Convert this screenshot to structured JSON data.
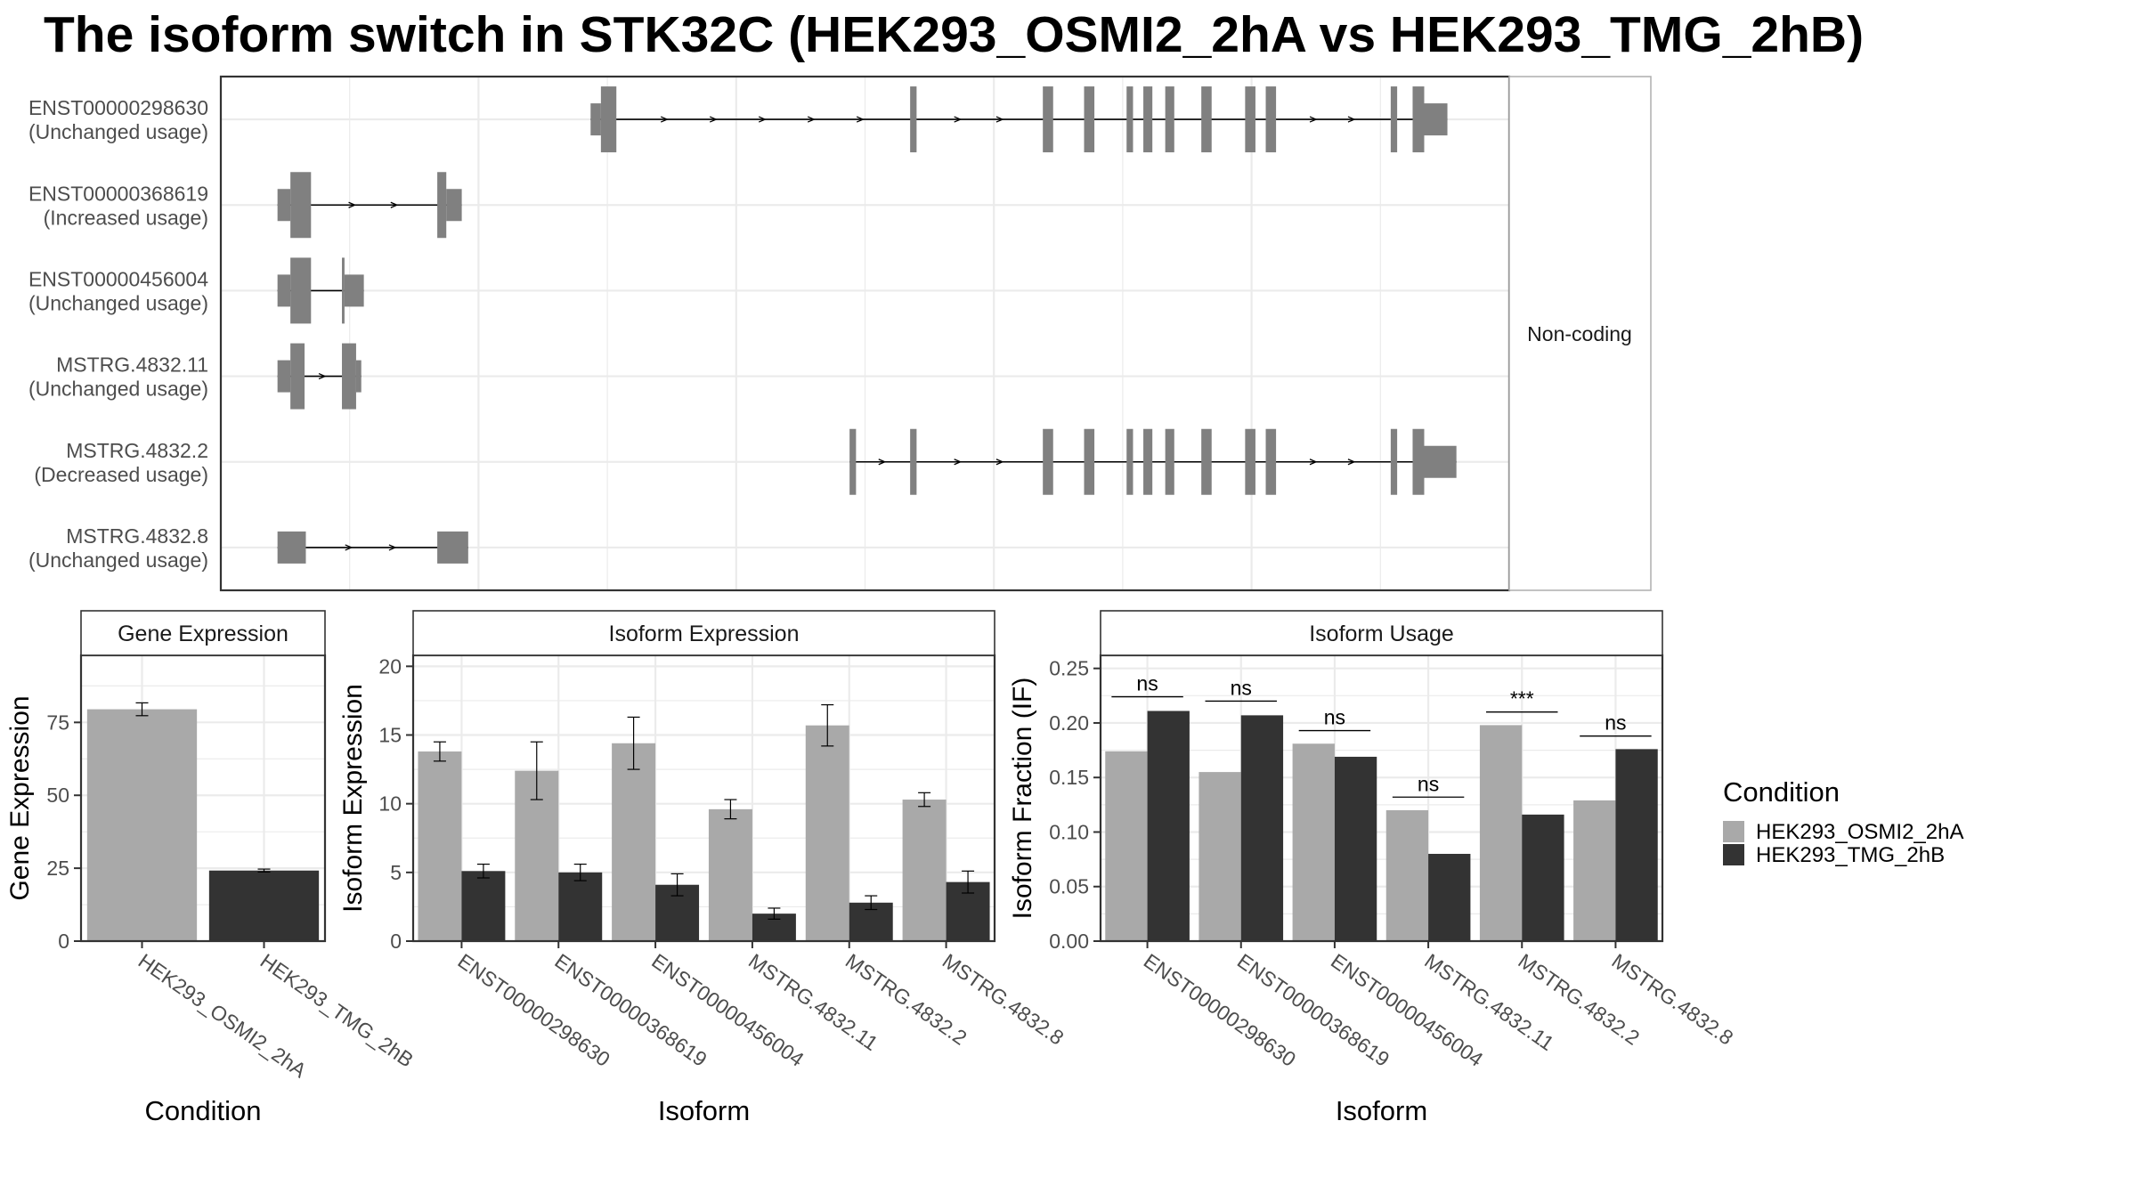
{
  "title": "The isoform switch in STK32C (HEK293_OSMI2_2hA vs HEK293_TMG_2hB)",
  "colors": {
    "condition_1": "#a9a9a9",
    "condition_2": "#333333",
    "structure": "#808080",
    "grid": "#ebebeb",
    "panel_border": "#333333",
    "strip_border": "#b3b3b3"
  },
  "chart_data": [
    {
      "type": "gene-structure",
      "facet_label": "Non-coding",
      "x_range": [
        0,
        100
      ],
      "transcripts": [
        {
          "id": "ENST00000298630",
          "status": "(Unchanged usage)",
          "exons": [
            {
              "start": 28.7,
              "end": 29.5,
              "type": "utr"
            },
            {
              "start": 29.5,
              "end": 30.7,
              "type": "cds"
            },
            {
              "start": 53.5,
              "end": 54.0,
              "type": "cds"
            },
            {
              "start": 63.8,
              "end": 64.6,
              "type": "cds"
            },
            {
              "start": 67.0,
              "end": 67.8,
              "type": "cds"
            },
            {
              "start": 70.3,
              "end": 70.8,
              "type": "cds"
            },
            {
              "start": 71.6,
              "end": 72.3,
              "type": "cds"
            },
            {
              "start": 73.3,
              "end": 74.0,
              "type": "cds"
            },
            {
              "start": 76.1,
              "end": 76.9,
              "type": "cds"
            },
            {
              "start": 79.5,
              "end": 80.3,
              "type": "cds"
            },
            {
              "start": 81.1,
              "end": 81.9,
              "type": "cds"
            },
            {
              "start": 90.8,
              "end": 91.3,
              "type": "cds"
            },
            {
              "start": 92.5,
              "end": 93.4,
              "type": "cds"
            },
            {
              "start": 93.4,
              "end": 95.2,
              "type": "utr"
            }
          ]
        },
        {
          "id": "ENST00000368619",
          "status": "(Increased usage)",
          "exons": [
            {
              "start": 4.4,
              "end": 5.4,
              "type": "utr"
            },
            {
              "start": 5.4,
              "end": 7.0,
              "type": "cds"
            },
            {
              "start": 16.8,
              "end": 17.5,
              "type": "cds"
            },
            {
              "start": 17.5,
              "end": 18.7,
              "type": "utr"
            }
          ]
        },
        {
          "id": "ENST00000456004",
          "status": "(Unchanged usage)",
          "exons": [
            {
              "start": 4.4,
              "end": 5.4,
              "type": "utr"
            },
            {
              "start": 5.4,
              "end": 7.0,
              "type": "cds"
            },
            {
              "start": 9.4,
              "end": 9.6,
              "type": "cds"
            },
            {
              "start": 9.6,
              "end": 11.1,
              "type": "utr"
            }
          ]
        },
        {
          "id": "MSTRG.4832.11",
          "status": "(Unchanged usage)",
          "exons": [
            {
              "start": 4.4,
              "end": 5.4,
              "type": "utr"
            },
            {
              "start": 5.4,
              "end": 6.5,
              "type": "cds"
            },
            {
              "start": 9.4,
              "end": 10.5,
              "type": "cds"
            },
            {
              "start": 10.5,
              "end": 10.9,
              "type": "utr"
            }
          ]
        },
        {
          "id": "MSTRG.4832.2",
          "status": "(Decreased usage)",
          "exons": [
            {
              "start": 48.8,
              "end": 49.3,
              "type": "cds"
            },
            {
              "start": 53.5,
              "end": 54.0,
              "type": "cds"
            },
            {
              "start": 63.8,
              "end": 64.6,
              "type": "cds"
            },
            {
              "start": 67.0,
              "end": 67.8,
              "type": "cds"
            },
            {
              "start": 70.3,
              "end": 70.8,
              "type": "cds"
            },
            {
              "start": 71.6,
              "end": 72.3,
              "type": "cds"
            },
            {
              "start": 73.3,
              "end": 74.0,
              "type": "cds"
            },
            {
              "start": 76.1,
              "end": 76.9,
              "type": "cds"
            },
            {
              "start": 79.5,
              "end": 80.3,
              "type": "cds"
            },
            {
              "start": 81.1,
              "end": 81.9,
              "type": "cds"
            },
            {
              "start": 90.8,
              "end": 91.3,
              "type": "cds"
            },
            {
              "start": 92.5,
              "end": 93.4,
              "type": "cds"
            },
            {
              "start": 93.4,
              "end": 95.9,
              "type": "utr"
            }
          ]
        },
        {
          "id": "MSTRG.4832.8",
          "status": "(Unchanged usage)",
          "exons": [
            {
              "start": 4.4,
              "end": 6.6,
              "type": "utr"
            },
            {
              "start": 16.8,
              "end": 19.2,
              "type": "utr"
            }
          ]
        }
      ]
    },
    {
      "type": "bar",
      "title": "Gene Expression",
      "xlabel": "Condition",
      "ylabel": "Gene Expression",
      "ylim": [
        0,
        98
      ],
      "yticks": [
        0,
        25,
        50,
        75
      ],
      "categories": [
        "HEK293_OSMI2_2hA",
        "HEK293_TMG_2hB"
      ],
      "values": [
        79.5,
        24.2
      ],
      "errors": [
        [
          77.3,
          81.7
        ],
        [
          23.7,
          24.7
        ]
      ]
    },
    {
      "type": "bar",
      "title": "Isoform Expression",
      "xlabel": "Isoform",
      "ylabel": "Isoform Expression",
      "ylim": [
        0,
        20.8
      ],
      "yticks": [
        0,
        5,
        10,
        15,
        20
      ],
      "categories": [
        "ENST00000298630",
        "ENST00000368619",
        "ENST00000456004",
        "MSTRG.4832.11",
        "MSTRG.4832.2",
        "MSTRG.4832.8"
      ],
      "series": [
        {
          "name": "HEK293_OSMI2_2hA",
          "values": [
            13.8,
            12.4,
            14.4,
            9.6,
            15.7,
            10.3
          ],
          "errors": [
            [
              13.1,
              14.5
            ],
            [
              10.3,
              14.5
            ],
            [
              12.5,
              16.3
            ],
            [
              8.9,
              10.3
            ],
            [
              14.2,
              17.2
            ],
            [
              9.8,
              10.8
            ]
          ]
        },
        {
          "name": "HEK293_TMG_2hB",
          "values": [
            5.1,
            5.0,
            4.1,
            2.0,
            2.8,
            4.3
          ],
          "errors": [
            [
              4.6,
              5.6
            ],
            [
              4.4,
              5.6
            ],
            [
              3.3,
              4.9
            ],
            [
              1.6,
              2.4
            ],
            [
              2.3,
              3.3
            ],
            [
              3.5,
              5.1
            ]
          ]
        }
      ]
    },
    {
      "type": "bar",
      "title": "Isoform Usage",
      "xlabel": "Isoform",
      "ylabel": "Isoform Fraction (IF)",
      "ylim": [
        0,
        0.262
      ],
      "yticks": [
        0.0,
        0.05,
        0.1,
        0.15,
        0.2,
        0.25
      ],
      "categories": [
        "ENST00000298630",
        "ENST00000368619",
        "ENST00000456004",
        "MSTRG.4832.11",
        "MSTRG.4832.2",
        "MSTRG.4832.8"
      ],
      "series": [
        {
          "name": "HEK293_OSMI2_2hA",
          "values": [
            0.174,
            0.155,
            0.181,
            0.12,
            0.198,
            0.129
          ]
        },
        {
          "name": "HEK293_TMG_2hB",
          "values": [
            0.211,
            0.207,
            0.169,
            0.08,
            0.116,
            0.176
          ]
        }
      ],
      "significance": [
        "ns",
        "ns",
        "ns",
        "ns",
        "***",
        "ns"
      ],
      "significance_y": [
        0.224,
        0.22,
        0.193,
        0.132,
        0.21,
        0.188
      ]
    }
  ],
  "legend": {
    "title": "Condition",
    "items": [
      "HEK293_OSMI2_2hA",
      "HEK293_TMG_2hB"
    ]
  }
}
